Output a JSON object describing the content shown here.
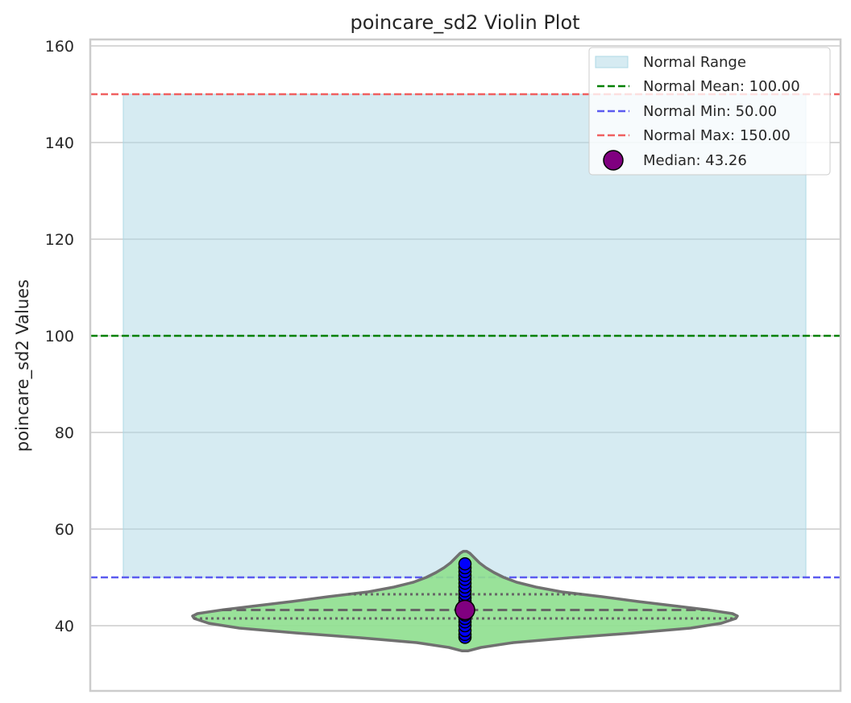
{
  "chart_data": {
    "type": "violin",
    "title": "poincare_sd2 Violin Plot",
    "xlabel": "",
    "ylabel": "poincare_sd2 Values",
    "ylim": [
      26,
      161
    ],
    "yticks": [
      40,
      60,
      80,
      100,
      120,
      140,
      160
    ],
    "grid": true,
    "legend_position": "top-right",
    "normal_range": {
      "min": 50,
      "max": 150
    },
    "normal_mean": 100,
    "median": 43.26,
    "quartiles": {
      "q1": 41.5,
      "median": 43.26,
      "q3": 46.5
    },
    "violin_extent": [
      34.8,
      55.4
    ],
    "points": [
      37.6,
      38.2,
      39.0,
      40.0,
      40.8,
      41.5,
      42.2,
      43.0,
      43.5,
      44.2,
      45.0,
      45.8,
      46.5,
      47.2,
      48.0,
      48.8,
      49.6,
      50.4,
      51.2,
      52.0,
      52.8
    ],
    "legend": [
      {
        "label": "Normal Range",
        "kind": "patch"
      },
      {
        "label": "Normal Mean: 100.00",
        "kind": "dash-green"
      },
      {
        "label": "Normal Min: 50.00",
        "kind": "dash-blue"
      },
      {
        "label": "Normal Max: 150.00",
        "kind": "dash-red"
      },
      {
        "label": "Median: 43.26",
        "kind": "marker"
      }
    ],
    "colors": {
      "range_fill": "#add8e6",
      "mean_line": "#008000",
      "min_line": "#5b5bf0",
      "max_line": "#f06060",
      "violin_fill": "#90e090",
      "violin_edge": "#707070",
      "points": "#0000ff",
      "median_marker": "#800080",
      "grid": "#cccccc",
      "frame": "#cccccc"
    }
  }
}
